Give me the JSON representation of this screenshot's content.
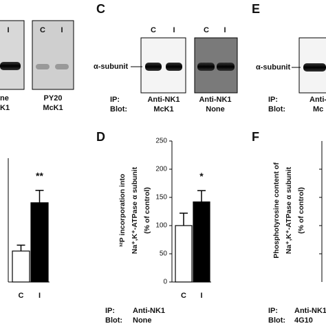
{
  "blots": {
    "a": {
      "lanes_left": [
        "I"
      ],
      "lanes_right": [
        "C",
        "I"
      ],
      "caption_left": [
        "ne",
        "K1"
      ],
      "caption_right": [
        "PY20",
        "McK1"
      ]
    },
    "c": {
      "label": "C",
      "lanes_1": [
        "C",
        "I"
      ],
      "lanes_2": [
        "C",
        "I"
      ],
      "band": "α-subunit",
      "row_labels": [
        "IP:",
        "Blot:"
      ],
      "caption_1": [
        "Anti-NK1",
        "McK1"
      ],
      "caption_2": [
        "Anti-NK1",
        "None"
      ]
    },
    "e": {
      "label": "E",
      "band": "α-subunit",
      "row_labels": [
        "IP:",
        "Blot:"
      ],
      "caption": [
        "Anti-",
        "Mc"
      ]
    }
  },
  "chart_data": [
    {
      "type": "bar",
      "categories": [
        "C",
        "I"
      ],
      "values": [
        100,
        256
      ],
      "errors": [
        19,
        40
      ],
      "colors": [
        "#ffffff",
        "#000000"
      ],
      "ylim": [
        0,
        400
      ],
      "annotation": "**"
    },
    {
      "type": "bar",
      "label": "D",
      "categories": [
        "C",
        "I"
      ],
      "values": [
        100,
        142
      ],
      "errors": [
        22,
        20
      ],
      "colors": [
        "#ffffff",
        "#000000"
      ],
      "ylim": [
        0,
        250
      ],
      "yticks": [
        0,
        50,
        100,
        150,
        200,
        250
      ],
      "annotation": "*",
      "y_label": [
        "³²P incorporation into",
        "Na⁺,K⁺-ATPase α subunit",
        "(% of control)"
      ],
      "row_labels": [
        "IP:",
        "Blot:"
      ],
      "caption": [
        "Anti-NK1",
        "None"
      ]
    }
  ],
  "panel_f": {
    "label": "F",
    "y_label": [
      "Phosphotyrosine content of",
      "Na⁺,K⁺-ATPase α subunit",
      "(% of control)"
    ],
    "row_labels": [
      "IP:",
      "Blot:"
    ],
    "caption": [
      "Anti-NK1",
      "4G10"
    ]
  }
}
